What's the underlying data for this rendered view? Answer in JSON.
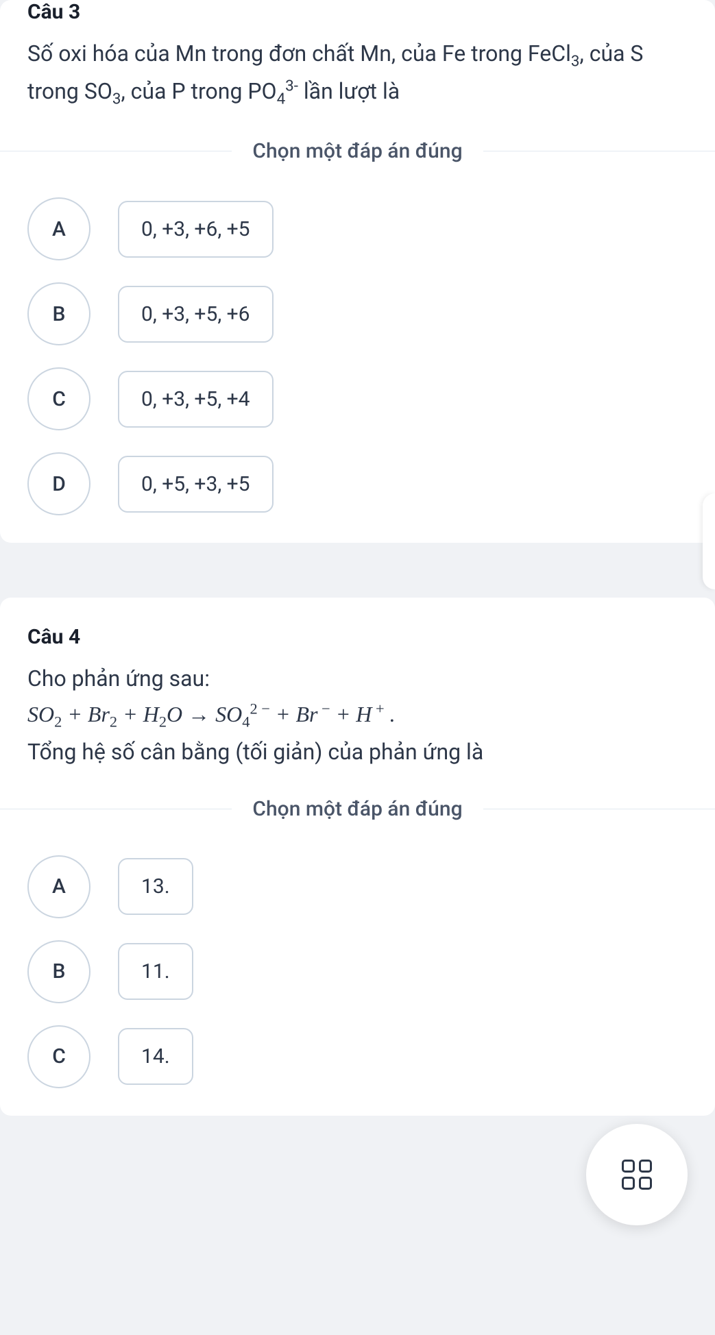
{
  "questions": [
    {
      "title": "Câu 3",
      "body_html": "Số oxi hóa của Mn trong đơn chất Mn, của Fe trong FeCl<span class='sub'>3</span>, của S trong SO<span class='sub'>3</span>, của P trong PO<span class='sub'>4</span><span class='sup'>3-</span> lần lượt là",
      "prompt": "Chọn một đáp án đúng",
      "options": [
        {
          "letter": "A",
          "text": "0, +3, +6, +5"
        },
        {
          "letter": "B",
          "text": "0, +3, +5, +6"
        },
        {
          "letter": "C",
          "text": "0, +3, +5, +4"
        },
        {
          "letter": "D",
          "text": "0, +5, +3, +5"
        }
      ]
    },
    {
      "title": "Câu 4",
      "body_pre": "Cho phản ứng sau:",
      "equation_html": "<span class='math'>SO<span class='sub up'>2</span> + Br<span class='sub up'>2</span> + H<span class='sub up'>2</span>O → SO<span class='sub up'>4</span><span class='sup up'>2 −</span> + Br<span class='sup up'> −</span> + H<span class='sup up'> +</span> .</span>",
      "body_post": "Tổng hệ số cân bằng (tối giản) của phản ứng là",
      "prompt": "Chọn một đáp án đúng",
      "options": [
        {
          "letter": "A",
          "text": "13."
        },
        {
          "letter": "B",
          "text": "11."
        },
        {
          "letter": "C",
          "text": "14."
        }
      ]
    }
  ],
  "colors": {
    "page_bg": "#f0f2f5",
    "card_bg": "#ffffff",
    "text_primary": "#1a202c",
    "text_body": "#2d3748",
    "border": "#cbd5e0",
    "divider": "#e2e8f0"
  }
}
